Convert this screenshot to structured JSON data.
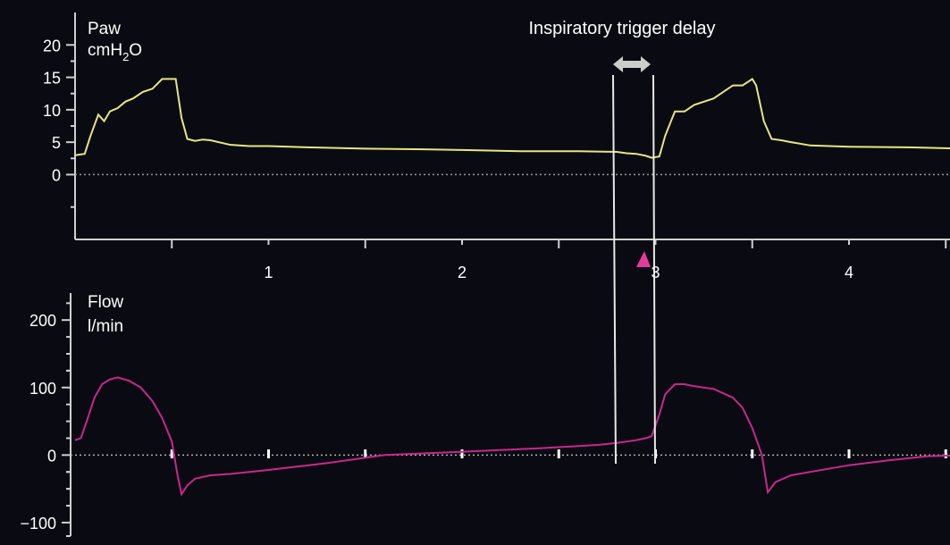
{
  "annotation": {
    "label": "Inspiratory trigger delay",
    "trigger_marker": "triangle-marker"
  },
  "colors": {
    "background": "#0a0a12",
    "paw_trace": "#e8e680",
    "flow_trace": "#c8288c",
    "trigger_marker": "#e43a9a",
    "axis": "#d0d0d0",
    "arrow": "#cccccc"
  },
  "chart_data": [
    {
      "type": "line",
      "title": "Paw",
      "ylabel": "cmH",
      "ylabel_sub": "2",
      "ylabel_tail": "O",
      "xlim": [
        0,
        4.6
      ],
      "ylim": [
        -10,
        25
      ],
      "yticks": [
        0,
        5,
        10,
        15,
        20
      ],
      "ytick_labels": [
        "0",
        "5",
        "10",
        "15",
        "20"
      ],
      "xticks": [
        1,
        2,
        3,
        4
      ],
      "xtick_labels": [
        "1",
        "2",
        "3",
        "4"
      ],
      "baseline": 0,
      "series": [
        {
          "x": [
            0,
            0.05,
            0.08,
            0.12,
            0.15,
            0.18,
            0.22,
            0.26,
            0.3,
            0.35,
            0.4,
            0.45,
            0.5,
            0.52,
            0.55,
            0.58,
            0.62,
            0.66,
            0.7,
            0.8,
            0.9,
            1.0,
            1.2,
            1.5,
            1.8,
            2.0,
            2.3,
            2.6,
            2.8,
            2.85,
            2.9,
            2.95,
            2.98,
            3.02,
            3.05,
            3.1,
            3.15,
            3.2,
            3.3,
            3.4,
            3.45,
            3.5,
            3.52,
            3.56,
            3.6,
            3.65,
            3.7,
            3.8,
            4.0,
            4.3,
            4.6
          ],
          "y": [
            3,
            3.2,
            6,
            9,
            8.5,
            9.5,
            10.5,
            11,
            12,
            12.5,
            13.5,
            14.5,
            15,
            14.5,
            9,
            5.5,
            5.2,
            5.4,
            5.3,
            4.6,
            4.4,
            4.4,
            4.2,
            4,
            3.9,
            3.8,
            3.6,
            3.6,
            3.5,
            3.3,
            3.2,
            2.9,
            2.6,
            2.8,
            6,
            9.5,
            10,
            10.5,
            12,
            13.5,
            14,
            14.5,
            14,
            8,
            5.5,
            5.3,
            5,
            4.5,
            4.3,
            4.2,
            4
          ]
        }
      ]
    },
    {
      "type": "line",
      "title": "Flow",
      "ylabel": "l/min",
      "xlim": [
        0,
        4.6
      ],
      "ylim": [
        -120,
        240
      ],
      "yticks": [
        -100,
        0,
        100,
        200
      ],
      "ytick_labels": [
        "−100",
        "0",
        "100",
        "200"
      ],
      "xticks": [
        0.5,
        1,
        1.5,
        2,
        2.5,
        3,
        3.5,
        4,
        4.5
      ],
      "baseline": 0,
      "series": [
        {
          "x": [
            0,
            0.03,
            0.06,
            0.1,
            0.14,
            0.18,
            0.22,
            0.28,
            0.34,
            0.4,
            0.45,
            0.5,
            0.53,
            0.55,
            0.58,
            0.62,
            0.7,
            0.8,
            1.0,
            1.3,
            1.6,
            2.0,
            2.4,
            2.7,
            2.8,
            2.9,
            2.95,
            2.98,
            3.02,
            3.05,
            3.1,
            3.15,
            3.2,
            3.3,
            3.4,
            3.45,
            3.5,
            3.55,
            3.58,
            3.62,
            3.7,
            3.8,
            4.0,
            4.2,
            4.4,
            4.6
          ],
          "y": [
            22,
            25,
            50,
            85,
            105,
            112,
            115,
            110,
            100,
            80,
            55,
            20,
            -30,
            -58,
            -45,
            -35,
            -30,
            -28,
            -22,
            -12,
            0,
            5,
            10,
            15,
            18,
            22,
            25,
            28,
            60,
            90,
            105,
            105,
            102,
            98,
            85,
            70,
            40,
            0,
            -55,
            -40,
            -30,
            -25,
            -15,
            -8,
            -2,
            0
          ]
        }
      ]
    }
  ]
}
